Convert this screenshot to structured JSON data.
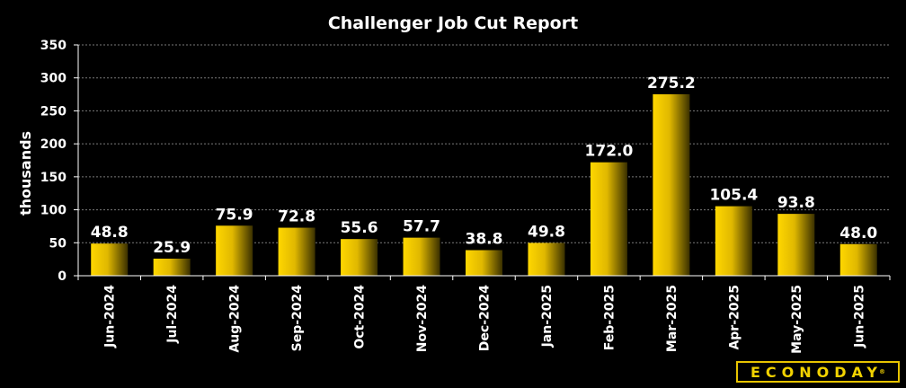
{
  "brand": {
    "accent": "#f2cc00",
    "logo_text": "ECONODAY"
  },
  "chart_data": {
    "type": "bar",
    "title": "Challenger Job Cut Report",
    "xlabel": "",
    "ylabel": "thousands",
    "ylim": [
      0,
      350
    ],
    "yticks": [
      0,
      50,
      100,
      150,
      200,
      250,
      300,
      350
    ],
    "grid": true,
    "categories": [
      "Jun-2024",
      "Jul-2024",
      "Aug-2024",
      "Sep-2024",
      "Oct-2024",
      "Nov-2024",
      "Dec-2024",
      "Jan-2025",
      "Feb-2025",
      "Mar-2025",
      "Apr-2025",
      "May-2025",
      "Jun-2025"
    ],
    "values": [
      48.8,
      25.9,
      75.9,
      72.8,
      55.6,
      57.7,
      38.8,
      49.8,
      172.0,
      275.2,
      105.4,
      93.8,
      48.0
    ],
    "data_labels": [
      "48.8",
      "25.9",
      "75.9",
      "72.8",
      "55.6",
      "57.7",
      "38.8",
      "49.8",
      "172.0",
      "275.2",
      "105.4",
      "93.8",
      "48.0"
    ],
    "colors": {
      "bar_light": "#ffd700",
      "bar_dark": "#3a3000",
      "grid": "#7a7a7a",
      "text": "#ffffff"
    }
  }
}
